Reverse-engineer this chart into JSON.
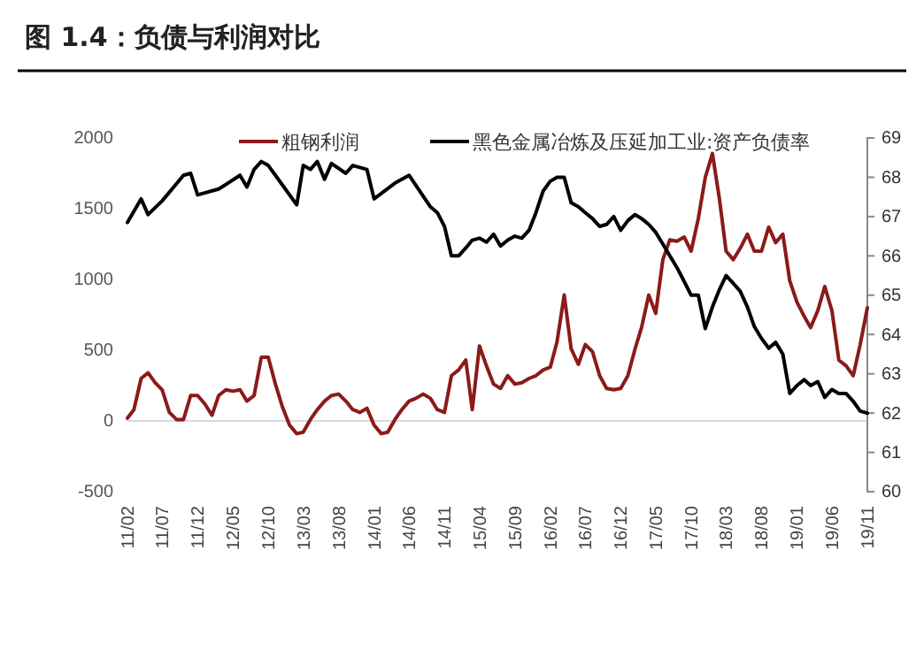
{
  "chart_data": {
    "type": "line",
    "title": "图 1.4：负债与利润对比",
    "x": [
      "2011-02",
      "2011-03",
      "2011-04",
      "2011-05",
      "2011-06",
      "2011-07",
      "2011-08",
      "2011-09",
      "2011-10",
      "2011-11",
      "2011-12",
      "2012-01",
      "2012-02",
      "2012-03",
      "2012-04",
      "2012-05",
      "2012-06",
      "2012-07",
      "2012-08",
      "2012-09",
      "2012-10",
      "2012-11",
      "2012-12",
      "2013-01",
      "2013-02",
      "2013-03",
      "2013-04",
      "2013-05",
      "2013-06",
      "2013-07",
      "2013-08",
      "2013-09",
      "2013-10",
      "2013-11",
      "2013-12",
      "2014-01",
      "2014-02",
      "2014-03",
      "2014-04",
      "2014-05",
      "2014-06",
      "2014-07",
      "2014-08",
      "2014-09",
      "2014-10",
      "2014-11",
      "2014-12",
      "2015-01",
      "2015-02",
      "2015-03",
      "2015-04",
      "2015-05",
      "2015-06",
      "2015-07",
      "2015-08",
      "2015-09",
      "2015-10",
      "2015-11",
      "2015-12",
      "2016-01",
      "2016-02",
      "2016-03",
      "2016-04",
      "2016-05",
      "2016-06",
      "2016-07",
      "2016-08",
      "2016-09",
      "2016-10",
      "2016-11",
      "2016-12",
      "2017-01",
      "2017-02",
      "2017-03",
      "2017-04",
      "2017-05",
      "2017-06",
      "2017-07",
      "2017-08",
      "2017-09",
      "2017-10",
      "2017-11",
      "2017-12",
      "2018-01",
      "2018-02",
      "2018-03",
      "2018-04",
      "2018-05",
      "2018-06",
      "2018-07",
      "2018-08",
      "2018-09",
      "2018-10",
      "2018-11",
      "2018-12",
      "2019-01",
      "2019-02",
      "2019-03",
      "2019-04",
      "2019-05",
      "2019-06",
      "2019-07",
      "2019-08",
      "2019-09",
      "2019-10",
      "2019-11"
    ],
    "series": [
      {
        "name": "粗钢利润",
        "color": "#8b1a1a",
        "values": [
          20,
          80,
          300,
          340,
          270,
          220,
          60,
          10,
          10,
          180,
          180,
          120,
          40,
          180,
          220,
          210,
          220,
          140,
          180,
          450,
          450,
          260,
          100,
          -30,
          -90,
          -80,
          10,
          80,
          140,
          180,
          190,
          140,
          80,
          60,
          90,
          -30,
          -90,
          -80,
          10,
          80,
          140,
          160,
          190,
          160,
          80,
          60,
          320,
          360,
          430,
          80,
          530,
          390,
          260,
          230,
          320,
          260,
          270,
          300,
          320,
          360,
          380,
          560,
          890,
          510,
          400,
          540,
          490,
          320,
          230,
          220,
          230,
          320,
          510,
          660,
          890,
          760,
          1140,
          1280,
          1270,
          1300,
          1200,
          1430,
          1720,
          1890,
          1560,
          1200,
          1140,
          1220,
          1320,
          1200,
          1200,
          1370,
          1260,
          1320,
          990,
          840,
          740,
          660,
          780,
          950,
          780,
          430,
          390,
          320,
          540,
          800
        ]
      },
      {
        "name": "黑色金属冶炼及压延加工业:资产负债率",
        "color": "#000000",
        "axis": "y2",
        "x": [
          "2011-02",
          "2011-04",
          "2011-05",
          "2011-07",
          "2011-10",
          "2011-11",
          "2011-12",
          "2012-03",
          "2012-06",
          "2012-07",
          "2012-08",
          "2012-09",
          "2012-10",
          "2012-11",
          "2013-02",
          "2013-03",
          "2013-04",
          "2013-05",
          "2013-06",
          "2013-07",
          "2013-09",
          "2013-10",
          "2013-12",
          "2014-01",
          "2014-04",
          "2014-06",
          "2014-09",
          "2014-10",
          "2014-11",
          "2014-12",
          "2015-01",
          "2015-02",
          "2015-03",
          "2015-04",
          "2015-05",
          "2015-06",
          "2015-07",
          "2015-08",
          "2015-09",
          "2015-10",
          "2015-11",
          "2015-12",
          "2016-01",
          "2016-02",
          "2016-03",
          "2016-04",
          "2016-05",
          "2016-06",
          "2016-07",
          "2016-08",
          "2016-09",
          "2016-10",
          "2016-11",
          "2016-12",
          "2017-01",
          "2017-02",
          "2017-03",
          "2017-04",
          "2017-05",
          "2017-06",
          "2017-07",
          "2017-08",
          "2017-09",
          "2017-10",
          "2017-11",
          "2017-12",
          "2018-01",
          "2018-02",
          "2018-03",
          "2018-04",
          "2018-05",
          "2018-06",
          "2018-07",
          "2018-08",
          "2018-09",
          "2018-10",
          "2018-11",
          "2018-12",
          "2019-01",
          "2019-02",
          "2019-03",
          "2019-04",
          "2019-05",
          "2019-06",
          "2019-07",
          "2019-08",
          "2019-09",
          "2019-10",
          "2019-11"
        ],
        "values": [
          66.85,
          67.45,
          67.05,
          67.4,
          68.05,
          68.1,
          67.55,
          67.7,
          68.05,
          67.75,
          68.2,
          68.4,
          68.3,
          68.05,
          67.3,
          68.3,
          68.2,
          68.4,
          67.95,
          68.35,
          68.1,
          68.3,
          68.2,
          67.45,
          67.85,
          68.05,
          67.25,
          67.1,
          66.75,
          66.0,
          66.0,
          66.2,
          66.4,
          66.45,
          66.35,
          66.55,
          66.25,
          66.4,
          66.5,
          66.45,
          66.65,
          67.1,
          67.65,
          67.9,
          68.0,
          68.0,
          67.35,
          67.25,
          67.1,
          66.95,
          66.75,
          66.8,
          67.0,
          66.65,
          66.9,
          67.05,
          66.95,
          66.8,
          66.6,
          66.3,
          66.0,
          65.7,
          65.35,
          65.0,
          65.0,
          64.15,
          64.7,
          65.15,
          65.5,
          65.3,
          65.1,
          64.7,
          64.2,
          63.9,
          63.65,
          63.8,
          63.5,
          62.5,
          62.7,
          62.85,
          62.7,
          62.8,
          62.4,
          62.6,
          62.5,
          62.5,
          62.3,
          62.05,
          62.0
        ]
      }
    ],
    "xlim": [
      "2011-02",
      "2019-11"
    ],
    "xticks": [
      {
        "value": "2011-02",
        "label": "11/02"
      },
      {
        "value": "2011-07",
        "label": "11/07"
      },
      {
        "value": "2011-12",
        "label": "11/12"
      },
      {
        "value": "2012-05",
        "label": "12/05"
      },
      {
        "value": "2012-10",
        "label": "12/10"
      },
      {
        "value": "2013-03",
        "label": "13/03"
      },
      {
        "value": "2013-08",
        "label": "13/08"
      },
      {
        "value": "2014-01",
        "label": "14/01"
      },
      {
        "value": "2014-06",
        "label": "14/06"
      },
      {
        "value": "2014-11",
        "label": "14/11"
      },
      {
        "value": "2015-04",
        "label": "15/04"
      },
      {
        "value": "2015-09",
        "label": "15/09"
      },
      {
        "value": "2016-02",
        "label": "16/02"
      },
      {
        "value": "2016-07",
        "label": "16/07"
      },
      {
        "value": "2016-12",
        "label": "16/12"
      },
      {
        "value": "2017-05",
        "label": "17/05"
      },
      {
        "value": "2017-10",
        "label": "17/10"
      },
      {
        "value": "2018-03",
        "label": "18/03"
      },
      {
        "value": "2018-08",
        "label": "18/08"
      },
      {
        "value": "2019-01",
        "label": "19/01"
      },
      {
        "value": "2019-06",
        "label": "19/06"
      },
      {
        "value": "2019-11",
        "label": "19/11"
      }
    ],
    "ylim": [
      -500,
      2000
    ],
    "yticks": [
      -500,
      0,
      500,
      1000,
      1500,
      2000
    ],
    "y2lim": [
      60,
      69
    ],
    "y2ticks": [
      60,
      61,
      62,
      63,
      64,
      65,
      66,
      67,
      68,
      69
    ],
    "ref_lines": [
      {
        "axis": "y",
        "value": 0,
        "color": "#d9d9d9"
      }
    ],
    "legend": "top",
    "grid": false,
    "marker": "none",
    "line_style": "solid"
  }
}
